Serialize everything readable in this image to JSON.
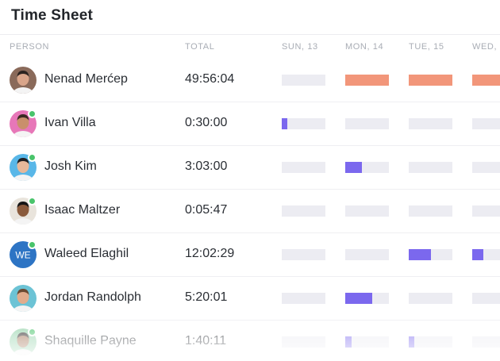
{
  "title": "Time Sheet",
  "columns": {
    "person": "PERSON",
    "total": "TOTAL",
    "days": [
      "SUN, 13",
      "MON, 14",
      "TUE, 15",
      "WED,"
    ]
  },
  "colors": {
    "overtime": "#f2967a",
    "logged": "#7b68ee",
    "empty": "#ececf2",
    "online": "#49c46b"
  },
  "rows": [
    {
      "name": "Nenad Merćep",
      "total": "49:56:04",
      "online": false,
      "avatar": "photo-avatar",
      "days": [
        {
          "fraction": 0,
          "color": "#f2967a"
        },
        {
          "fraction": 1,
          "color": "#f2967a"
        },
        {
          "fraction": 1,
          "color": "#f2967a"
        },
        {
          "fraction": 1,
          "color": "#f2967a"
        }
      ]
    },
    {
      "name": "Ivan Villa",
      "total": "0:30:00",
      "online": true,
      "avatar": "photo-avatar",
      "days": [
        {
          "fraction": 0.13,
          "color": "#7b68ee"
        },
        {
          "fraction": 0,
          "color": "#7b68ee"
        },
        {
          "fraction": 0,
          "color": "#7b68ee"
        },
        {
          "fraction": 0,
          "color": "#7b68ee"
        }
      ]
    },
    {
      "name": "Josh Kim",
      "total": "3:03:00",
      "online": true,
      "avatar": "photo-avatar",
      "days": [
        {
          "fraction": 0,
          "color": "#7b68ee"
        },
        {
          "fraction": 0.38,
          "color": "#7b68ee"
        },
        {
          "fraction": 0,
          "color": "#7b68ee"
        },
        {
          "fraction": 0,
          "color": "#7b68ee"
        }
      ]
    },
    {
      "name": "Isaac Maltzer",
      "total": "0:05:47",
      "online": true,
      "avatar": "photo-avatar",
      "days": [
        {
          "fraction": 0,
          "color": "#7b68ee"
        },
        {
          "fraction": 0,
          "color": "#7b68ee"
        },
        {
          "fraction": 0,
          "color": "#7b68ee"
        },
        {
          "fraction": 0,
          "color": "#7b68ee"
        }
      ]
    },
    {
      "name": "Waleed Elaghil",
      "total": "12:02:29",
      "online": true,
      "avatar": "initials-avatar",
      "initials": "WE",
      "days": [
        {
          "fraction": 0,
          "color": "#7b68ee"
        },
        {
          "fraction": 0,
          "color": "#7b68ee"
        },
        {
          "fraction": 0.5,
          "color": "#7b68ee"
        },
        {
          "fraction": 0.4,
          "color": "#7b68ee"
        }
      ]
    },
    {
      "name": "Jordan Randolph",
      "total": "5:20:01",
      "online": false,
      "avatar": "photo-avatar",
      "days": [
        {
          "fraction": 0,
          "color": "#7b68ee"
        },
        {
          "fraction": 0.62,
          "color": "#7b68ee"
        },
        {
          "fraction": 0,
          "color": "#7b68ee"
        },
        {
          "fraction": 0,
          "color": "#7b68ee"
        }
      ]
    },
    {
      "name": "Shaquille Payne",
      "total": "1:40:11",
      "online": true,
      "avatar": "photo-avatar",
      "days": [
        {
          "fraction": 0,
          "color": "#7b68ee"
        },
        {
          "fraction": 0.14,
          "color": "#7b68ee"
        },
        {
          "fraction": 0.13,
          "color": "#7b68ee"
        },
        {
          "fraction": 0,
          "color": "#7b68ee"
        }
      ]
    }
  ]
}
